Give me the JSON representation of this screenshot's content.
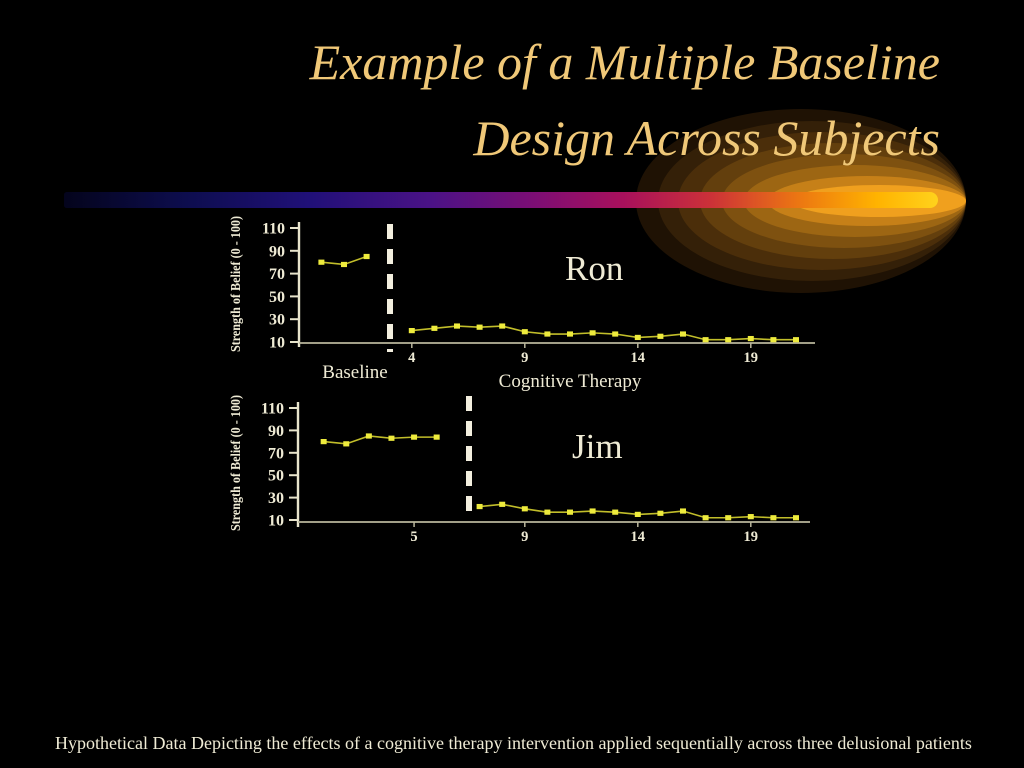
{
  "slide": {
    "title": {
      "line1": "Example of a Multiple Baseline",
      "line2": "Design Across Subjects"
    },
    "caption": "Hypothetical Data Depicting the effects of a cognitive therapy intervention applied sequentially across three delusional patients",
    "colors": {
      "background": "#000000",
      "title_text": "#f0c878",
      "body_text": "#efebd5",
      "data_line": "#c2be2a",
      "data_marker": "#eeeb3d",
      "y_axis": "#e8e4cc",
      "x_axis": "#b9b69c",
      "phase_change_line": "#f3efdf",
      "glow_orange": "#c68018",
      "bar_gradient": [
        "#04041c",
        "#0d0d4e",
        "#201078",
        "#4b1286",
        "#7d0e74",
        "#a8105c",
        "#cc3138",
        "#ec7612",
        "#ffb300",
        "#ffd21c"
      ]
    }
  },
  "chart_data": [
    {
      "type": "line",
      "subject": "Ron",
      "ylabel": "Strength of Belief (0 - 100)",
      "xlabel": "",
      "ylim": [
        10,
        110
      ],
      "y_ticks": [
        110,
        90,
        70,
        50,
        30,
        10
      ],
      "x_ticks": [
        {
          "label": "4",
          "pos": 4
        },
        {
          "label": "9",
          "pos": 9
        },
        {
          "label": "14",
          "pos": 14
        },
        {
          "label": "19",
          "pos": 19
        }
      ],
      "phase_change_after_session": 3,
      "phase_labels": [
        {
          "text": "Baseline"
        },
        {
          "text": "Cognitive Therapy"
        }
      ],
      "phases": [
        {
          "name": "Baseline",
          "sessions": [
            1,
            2,
            3
          ],
          "values": [
            80,
            78,
            85
          ]
        },
        {
          "name": "Cognitive Therapy",
          "sessions": [
            4,
            5,
            6,
            7,
            8,
            9,
            10,
            11,
            12,
            13,
            14,
            15,
            16,
            17,
            18,
            19,
            20,
            21
          ],
          "values": [
            20,
            22,
            24,
            23,
            24,
            19,
            17,
            17,
            18,
            17,
            14,
            15,
            17,
            12,
            12,
            13,
            12,
            12
          ]
        }
      ],
      "legend": "none",
      "grid": false
    },
    {
      "type": "line",
      "subject": "Jim",
      "ylabel": "Strength of Belief (0 - 100)",
      "xlabel": "",
      "ylim": [
        10,
        110
      ],
      "y_ticks": [
        110,
        90,
        70,
        50,
        30,
        10
      ],
      "x_ticks": [
        {
          "label": "5",
          "pos": 4.1
        },
        {
          "label": "9",
          "pos": 9
        },
        {
          "label": "14",
          "pos": 14
        },
        {
          "label": "19",
          "pos": 19
        }
      ],
      "phase_change_after_session": 6,
      "phase_labels": [],
      "phases": [
        {
          "name": "Baseline",
          "sessions": [
            1,
            2,
            3,
            4,
            5,
            6
          ],
          "values": [
            80,
            78,
            85,
            83,
            84,
            84
          ]
        },
        {
          "name": "Cognitive Therapy",
          "sessions": [
            7,
            8,
            9,
            10,
            11,
            12,
            13,
            14,
            15,
            16,
            17,
            18,
            19,
            20,
            21
          ],
          "values": [
            22,
            24,
            20,
            17,
            17,
            18,
            17,
            15,
            16,
            18,
            12,
            12,
            13,
            12,
            12
          ]
        }
      ],
      "legend": "none",
      "grid": false
    }
  ]
}
